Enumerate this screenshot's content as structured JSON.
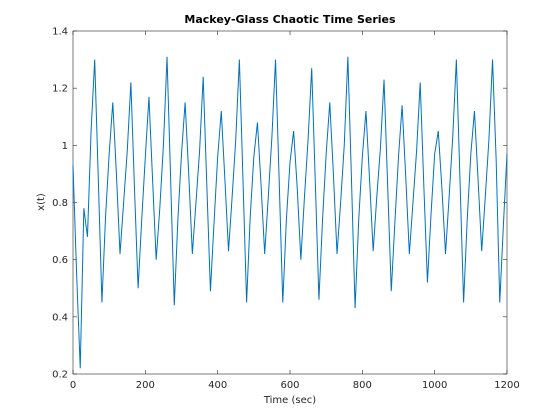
{
  "chart_data": {
    "type": "line",
    "title": "Mackey-Glass Chaotic Time Series",
    "x_label": "Time (sec)",
    "y_label": "x(t)",
    "x": [
      0,
      10,
      20,
      30,
      40,
      50,
      60,
      70,
      80,
      90,
      100,
      110,
      120,
      130,
      140,
      150,
      160,
      170,
      180,
      190,
      200,
      210,
      220,
      230,
      240,
      250,
      260,
      270,
      280,
      290,
      300,
      310,
      320,
      330,
      340,
      350,
      360,
      370,
      380,
      390,
      400,
      410,
      420,
      430,
      440,
      450,
      460,
      470,
      480,
      490,
      500,
      510,
      520,
      530,
      540,
      550,
      560,
      570,
      580,
      590,
      600,
      610,
      620,
      630,
      640,
      650,
      660,
      670,
      680,
      690,
      700,
      710,
      720,
      730,
      740,
      750,
      760,
      770,
      780,
      790,
      800,
      810,
      820,
      830,
      840,
      850,
      860,
      870,
      880,
      890,
      900,
      910,
      920,
      930,
      940,
      950,
      960,
      970,
      980,
      990,
      1000,
      1010,
      1020,
      1030,
      1040,
      1050,
      1060,
      1070,
      1080,
      1090,
      1100,
      1110,
      1120,
      1130,
      1140,
      1150,
      1160,
      1170,
      1180,
      1190,
      1200
    ],
    "series": [
      {
        "name": "x(t)",
        "color": "#0072bd",
        "values": [
          0.93,
          0.55,
          0.22,
          0.78,
          0.68,
          1.05,
          1.3,
          0.88,
          0.45,
          0.75,
          0.97,
          1.15,
          0.9,
          0.62,
          0.8,
          0.98,
          1.22,
          0.85,
          0.5,
          0.74,
          0.96,
          1.17,
          0.88,
          0.6,
          0.78,
          1.0,
          1.31,
          0.88,
          0.44,
          0.74,
          0.97,
          1.15,
          0.9,
          0.62,
          0.8,
          0.98,
          1.24,
          0.86,
          0.49,
          0.73,
          0.96,
          1.12,
          0.88,
          0.63,
          0.82,
          1.02,
          1.3,
          0.88,
          0.45,
          0.75,
          0.96,
          1.08,
          0.86,
          0.62,
          0.82,
          1.03,
          1.3,
          0.88,
          0.45,
          0.74,
          0.94,
          1.05,
          0.85,
          0.6,
          0.82,
          1.02,
          1.27,
          0.87,
          0.46,
          0.74,
          0.97,
          1.15,
          0.9,
          0.62,
          0.8,
          1.0,
          1.31,
          0.88,
          0.43,
          0.74,
          0.96,
          1.12,
          0.88,
          0.63,
          0.82,
          0.99,
          1.23,
          0.86,
          0.49,
          0.73,
          0.96,
          1.14,
          0.89,
          0.62,
          0.8,
          0.98,
          1.22,
          0.86,
          0.52,
          0.76,
          0.97,
          1.05,
          0.85,
          0.62,
          0.82,
          1.03,
          1.3,
          0.88,
          0.45,
          0.74,
          0.97,
          1.12,
          0.88,
          0.63,
          0.82,
          1.02,
          1.3,
          0.95,
          0.45,
          0.72,
          0.97
        ]
      }
    ],
    "xlim": [
      0,
      1200
    ],
    "xticks": [
      0,
      200,
      400,
      600,
      800,
      1000,
      1200
    ],
    "ylim": [
      0.2,
      1.4
    ],
    "yticks": [
      0.2,
      0.4,
      0.6,
      0.8,
      1,
      1.2,
      1.4
    ],
    "grid": false
  }
}
